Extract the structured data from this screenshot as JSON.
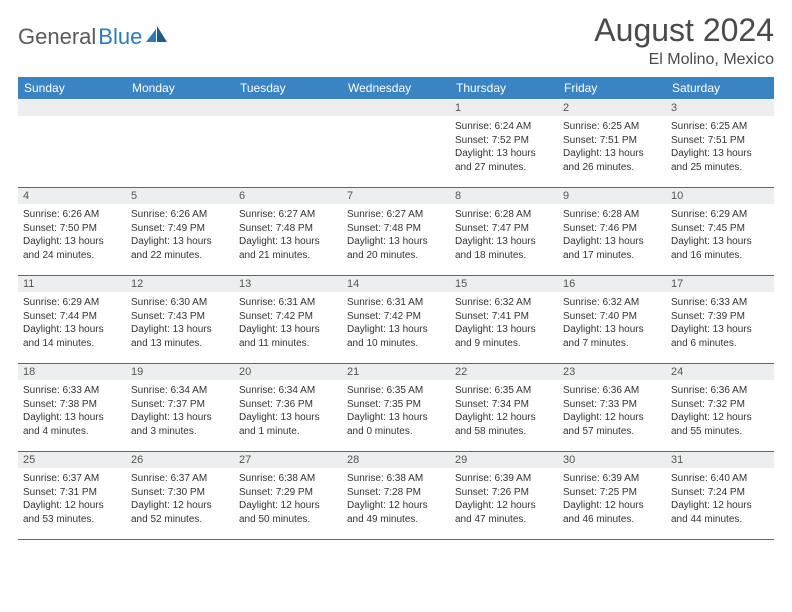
{
  "logo": {
    "text1": "General",
    "text2": "Blue"
  },
  "title": "August 2024",
  "location": "El Molino, Mexico",
  "header_color": "#3b84c4",
  "border_color": "#3b6fa0",
  "daynum_bg": "#eceeef",
  "weekdays": [
    "Sunday",
    "Monday",
    "Tuesday",
    "Wednesday",
    "Thursday",
    "Friday",
    "Saturday"
  ],
  "weeks": [
    [
      {
        "day": "",
        "sunrise": "",
        "sunset": "",
        "daylight": ""
      },
      {
        "day": "",
        "sunrise": "",
        "sunset": "",
        "daylight": ""
      },
      {
        "day": "",
        "sunrise": "",
        "sunset": "",
        "daylight": ""
      },
      {
        "day": "",
        "sunrise": "",
        "sunset": "",
        "daylight": ""
      },
      {
        "day": "1",
        "sunrise": "Sunrise: 6:24 AM",
        "sunset": "Sunset: 7:52 PM",
        "daylight": "Daylight: 13 hours and 27 minutes."
      },
      {
        "day": "2",
        "sunrise": "Sunrise: 6:25 AM",
        "sunset": "Sunset: 7:51 PM",
        "daylight": "Daylight: 13 hours and 26 minutes."
      },
      {
        "day": "3",
        "sunrise": "Sunrise: 6:25 AM",
        "sunset": "Sunset: 7:51 PM",
        "daylight": "Daylight: 13 hours and 25 minutes."
      }
    ],
    [
      {
        "day": "4",
        "sunrise": "Sunrise: 6:26 AM",
        "sunset": "Sunset: 7:50 PM",
        "daylight": "Daylight: 13 hours and 24 minutes."
      },
      {
        "day": "5",
        "sunrise": "Sunrise: 6:26 AM",
        "sunset": "Sunset: 7:49 PM",
        "daylight": "Daylight: 13 hours and 22 minutes."
      },
      {
        "day": "6",
        "sunrise": "Sunrise: 6:27 AM",
        "sunset": "Sunset: 7:48 PM",
        "daylight": "Daylight: 13 hours and 21 minutes."
      },
      {
        "day": "7",
        "sunrise": "Sunrise: 6:27 AM",
        "sunset": "Sunset: 7:48 PM",
        "daylight": "Daylight: 13 hours and 20 minutes."
      },
      {
        "day": "8",
        "sunrise": "Sunrise: 6:28 AM",
        "sunset": "Sunset: 7:47 PM",
        "daylight": "Daylight: 13 hours and 18 minutes."
      },
      {
        "day": "9",
        "sunrise": "Sunrise: 6:28 AM",
        "sunset": "Sunset: 7:46 PM",
        "daylight": "Daylight: 13 hours and 17 minutes."
      },
      {
        "day": "10",
        "sunrise": "Sunrise: 6:29 AM",
        "sunset": "Sunset: 7:45 PM",
        "daylight": "Daylight: 13 hours and 16 minutes."
      }
    ],
    [
      {
        "day": "11",
        "sunrise": "Sunrise: 6:29 AM",
        "sunset": "Sunset: 7:44 PM",
        "daylight": "Daylight: 13 hours and 14 minutes."
      },
      {
        "day": "12",
        "sunrise": "Sunrise: 6:30 AM",
        "sunset": "Sunset: 7:43 PM",
        "daylight": "Daylight: 13 hours and 13 minutes."
      },
      {
        "day": "13",
        "sunrise": "Sunrise: 6:31 AM",
        "sunset": "Sunset: 7:42 PM",
        "daylight": "Daylight: 13 hours and 11 minutes."
      },
      {
        "day": "14",
        "sunrise": "Sunrise: 6:31 AM",
        "sunset": "Sunset: 7:42 PM",
        "daylight": "Daylight: 13 hours and 10 minutes."
      },
      {
        "day": "15",
        "sunrise": "Sunrise: 6:32 AM",
        "sunset": "Sunset: 7:41 PM",
        "daylight": "Daylight: 13 hours and 9 minutes."
      },
      {
        "day": "16",
        "sunrise": "Sunrise: 6:32 AM",
        "sunset": "Sunset: 7:40 PM",
        "daylight": "Daylight: 13 hours and 7 minutes."
      },
      {
        "day": "17",
        "sunrise": "Sunrise: 6:33 AM",
        "sunset": "Sunset: 7:39 PM",
        "daylight": "Daylight: 13 hours and 6 minutes."
      }
    ],
    [
      {
        "day": "18",
        "sunrise": "Sunrise: 6:33 AM",
        "sunset": "Sunset: 7:38 PM",
        "daylight": "Daylight: 13 hours and 4 minutes."
      },
      {
        "day": "19",
        "sunrise": "Sunrise: 6:34 AM",
        "sunset": "Sunset: 7:37 PM",
        "daylight": "Daylight: 13 hours and 3 minutes."
      },
      {
        "day": "20",
        "sunrise": "Sunrise: 6:34 AM",
        "sunset": "Sunset: 7:36 PM",
        "daylight": "Daylight: 13 hours and 1 minute."
      },
      {
        "day": "21",
        "sunrise": "Sunrise: 6:35 AM",
        "sunset": "Sunset: 7:35 PM",
        "daylight": "Daylight: 13 hours and 0 minutes."
      },
      {
        "day": "22",
        "sunrise": "Sunrise: 6:35 AM",
        "sunset": "Sunset: 7:34 PM",
        "daylight": "Daylight: 12 hours and 58 minutes."
      },
      {
        "day": "23",
        "sunrise": "Sunrise: 6:36 AM",
        "sunset": "Sunset: 7:33 PM",
        "daylight": "Daylight: 12 hours and 57 minutes."
      },
      {
        "day": "24",
        "sunrise": "Sunrise: 6:36 AM",
        "sunset": "Sunset: 7:32 PM",
        "daylight": "Daylight: 12 hours and 55 minutes."
      }
    ],
    [
      {
        "day": "25",
        "sunrise": "Sunrise: 6:37 AM",
        "sunset": "Sunset: 7:31 PM",
        "daylight": "Daylight: 12 hours and 53 minutes."
      },
      {
        "day": "26",
        "sunrise": "Sunrise: 6:37 AM",
        "sunset": "Sunset: 7:30 PM",
        "daylight": "Daylight: 12 hours and 52 minutes."
      },
      {
        "day": "27",
        "sunrise": "Sunrise: 6:38 AM",
        "sunset": "Sunset: 7:29 PM",
        "daylight": "Daylight: 12 hours and 50 minutes."
      },
      {
        "day": "28",
        "sunrise": "Sunrise: 6:38 AM",
        "sunset": "Sunset: 7:28 PM",
        "daylight": "Daylight: 12 hours and 49 minutes."
      },
      {
        "day": "29",
        "sunrise": "Sunrise: 6:39 AM",
        "sunset": "Sunset: 7:26 PM",
        "daylight": "Daylight: 12 hours and 47 minutes."
      },
      {
        "day": "30",
        "sunrise": "Sunrise: 6:39 AM",
        "sunset": "Sunset: 7:25 PM",
        "daylight": "Daylight: 12 hours and 46 minutes."
      },
      {
        "day": "31",
        "sunrise": "Sunrise: 6:40 AM",
        "sunset": "Sunset: 7:24 PM",
        "daylight": "Daylight: 12 hours and 44 minutes."
      }
    ]
  ]
}
